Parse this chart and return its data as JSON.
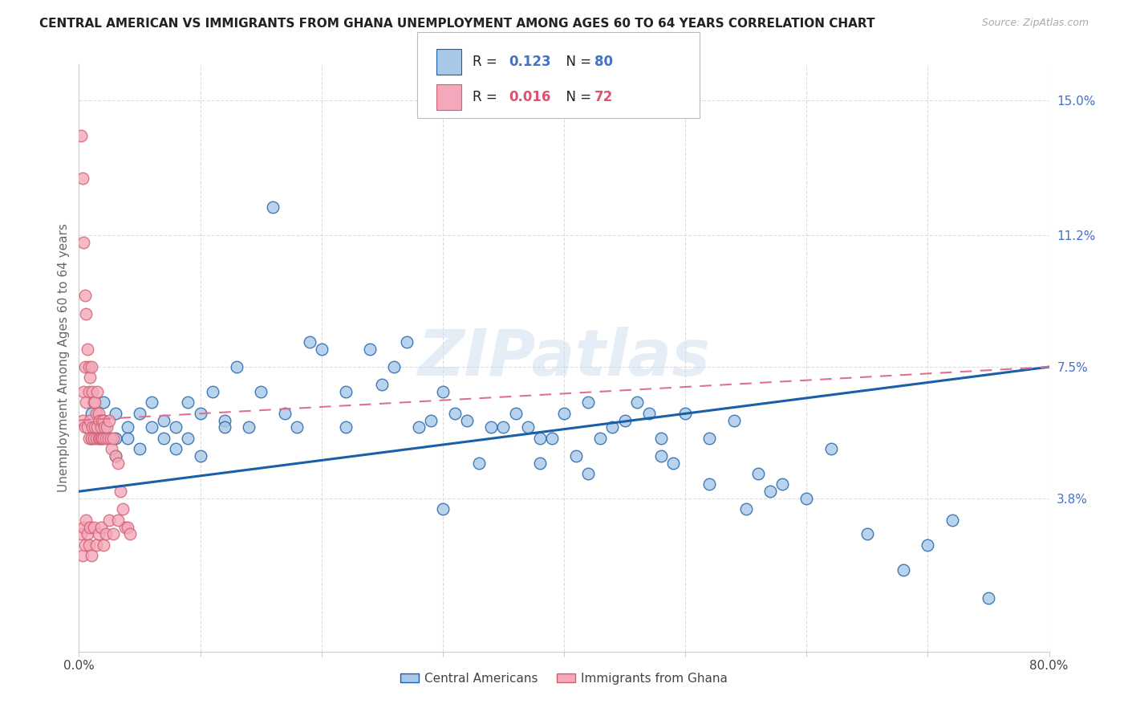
{
  "title": "CENTRAL AMERICAN VS IMMIGRANTS FROM GHANA UNEMPLOYMENT AMONG AGES 60 TO 64 YEARS CORRELATION CHART",
  "source": "Source: ZipAtlas.com",
  "ylabel": "Unemployment Among Ages 60 to 64 years",
  "xlim": [
    0.0,
    0.8
  ],
  "ylim": [
    -0.005,
    0.16
  ],
  "legend_R1": "R = 0.123",
  "legend_N1": "N = 80",
  "legend_R2": "R = 0.016",
  "legend_N2": "N = 72",
  "blue_color": "#a8c8e8",
  "pink_color": "#f4a8bb",
  "blue_line_color": "#1a5fa8",
  "pink_line_color": "#e07090",
  "watermark": "ZIPatlas",
  "blue_scatter_x": [
    0.01,
    0.01,
    0.02,
    0.02,
    0.02,
    0.03,
    0.03,
    0.03,
    0.04,
    0.04,
    0.05,
    0.05,
    0.06,
    0.06,
    0.07,
    0.07,
    0.08,
    0.08,
    0.09,
    0.09,
    0.1,
    0.1,
    0.11,
    0.12,
    0.12,
    0.13,
    0.14,
    0.15,
    0.16,
    0.17,
    0.18,
    0.19,
    0.2,
    0.22,
    0.22,
    0.24,
    0.25,
    0.26,
    0.27,
    0.28,
    0.29,
    0.3,
    0.31,
    0.32,
    0.33,
    0.34,
    0.35,
    0.36,
    0.37,
    0.38,
    0.39,
    0.4,
    0.41,
    0.42,
    0.43,
    0.44,
    0.45,
    0.46,
    0.47,
    0.48,
    0.49,
    0.5,
    0.52,
    0.54,
    0.55,
    0.56,
    0.57,
    0.58,
    0.6,
    0.62,
    0.65,
    0.68,
    0.7,
    0.72,
    0.75,
    0.3,
    0.38,
    0.42,
    0.48,
    0.52
  ],
  "blue_scatter_y": [
    0.055,
    0.062,
    0.058,
    0.065,
    0.06,
    0.055,
    0.062,
    0.05,
    0.058,
    0.055,
    0.062,
    0.052,
    0.065,
    0.058,
    0.06,
    0.055,
    0.058,
    0.052,
    0.065,
    0.055,
    0.062,
    0.05,
    0.068,
    0.06,
    0.058,
    0.075,
    0.058,
    0.068,
    0.12,
    0.062,
    0.058,
    0.082,
    0.08,
    0.068,
    0.058,
    0.08,
    0.07,
    0.075,
    0.082,
    0.058,
    0.06,
    0.068,
    0.062,
    0.06,
    0.048,
    0.058,
    0.058,
    0.062,
    0.058,
    0.055,
    0.055,
    0.062,
    0.05,
    0.065,
    0.055,
    0.058,
    0.06,
    0.065,
    0.062,
    0.055,
    0.048,
    0.062,
    0.042,
    0.06,
    0.035,
    0.045,
    0.04,
    0.042,
    0.038,
    0.052,
    0.028,
    0.018,
    0.025,
    0.032,
    0.01,
    0.035,
    0.048,
    0.045,
    0.05,
    0.055
  ],
  "pink_scatter_x": [
    0.002,
    0.003,
    0.003,
    0.004,
    0.004,
    0.005,
    0.005,
    0.005,
    0.006,
    0.006,
    0.007,
    0.007,
    0.008,
    0.008,
    0.008,
    0.009,
    0.009,
    0.01,
    0.01,
    0.011,
    0.011,
    0.012,
    0.012,
    0.013,
    0.013,
    0.014,
    0.014,
    0.015,
    0.015,
    0.016,
    0.016,
    0.017,
    0.017,
    0.018,
    0.018,
    0.019,
    0.019,
    0.02,
    0.02,
    0.021,
    0.022,
    0.023,
    0.024,
    0.025,
    0.026,
    0.027,
    0.028,
    0.03,
    0.032,
    0.034,
    0.036,
    0.038,
    0.04,
    0.042,
    0.002,
    0.003,
    0.004,
    0.005,
    0.006,
    0.007,
    0.008,
    0.009,
    0.01,
    0.012,
    0.014,
    0.016,
    0.018,
    0.02,
    0.022,
    0.025,
    0.028,
    0.032
  ],
  "pink_scatter_y": [
    0.14,
    0.128,
    0.06,
    0.11,
    0.068,
    0.095,
    0.075,
    0.058,
    0.09,
    0.065,
    0.08,
    0.058,
    0.075,
    0.068,
    0.055,
    0.072,
    0.06,
    0.075,
    0.055,
    0.068,
    0.058,
    0.065,
    0.055,
    0.065,
    0.058,
    0.062,
    0.055,
    0.068,
    0.058,
    0.062,
    0.055,
    0.06,
    0.055,
    0.058,
    0.055,
    0.06,
    0.055,
    0.06,
    0.055,
    0.058,
    0.055,
    0.058,
    0.055,
    0.06,
    0.055,
    0.052,
    0.055,
    0.05,
    0.048,
    0.04,
    0.035,
    0.03,
    0.03,
    0.028,
    0.028,
    0.022,
    0.03,
    0.025,
    0.032,
    0.028,
    0.025,
    0.03,
    0.022,
    0.03,
    0.025,
    0.028,
    0.03,
    0.025,
    0.028,
    0.032,
    0.028,
    0.032
  ],
  "blue_trend_x0": 0.0,
  "blue_trend_y0": 0.04,
  "blue_trend_x1": 0.8,
  "blue_trend_y1": 0.075,
  "pink_trend_x0": 0.0,
  "pink_trend_y0": 0.06,
  "pink_trend_x1": 0.8,
  "pink_trend_y1": 0.075,
  "grid_color": "#dddddd",
  "background_color": "#ffffff",
  "title_fontsize": 11,
  "source_fontsize": 9,
  "axis_label_color": "#666666",
  "tick_color_right": "#4472c4",
  "tick_color_bottom": "#444444"
}
